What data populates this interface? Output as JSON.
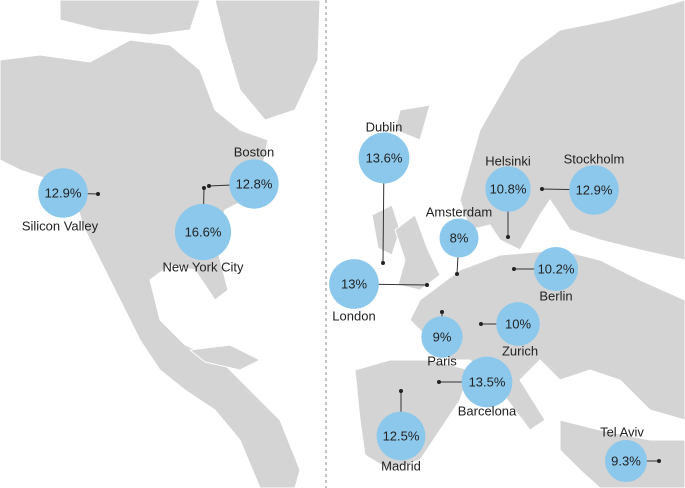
{
  "chart_data": {
    "type": "bubble-map",
    "categories": [
      "Silicon Valley",
      "New York City",
      "Boston",
      "Dublin",
      "London",
      "Amsterdam",
      "Helsinki",
      "Stockholm",
      "Berlin",
      "Paris",
      "Zurich",
      "Barcelona",
      "Madrid",
      "Tel Aviv"
    ],
    "values": [
      12.9,
      16.6,
      12.8,
      13.6,
      13,
      8,
      10.8,
      12.9,
      10.2,
      9,
      10,
      13.5,
      12.5,
      9.3
    ],
    "value_labels": [
      "12.9%",
      "16.6%",
      "12.8%",
      "13.6%",
      "13%",
      "8%",
      "10.8%",
      "12.9%",
      "10.2%",
      "9%",
      "10%",
      "13.5%",
      "12.5%",
      "9.3%"
    ],
    "color": "#8cc8ec"
  }
}
